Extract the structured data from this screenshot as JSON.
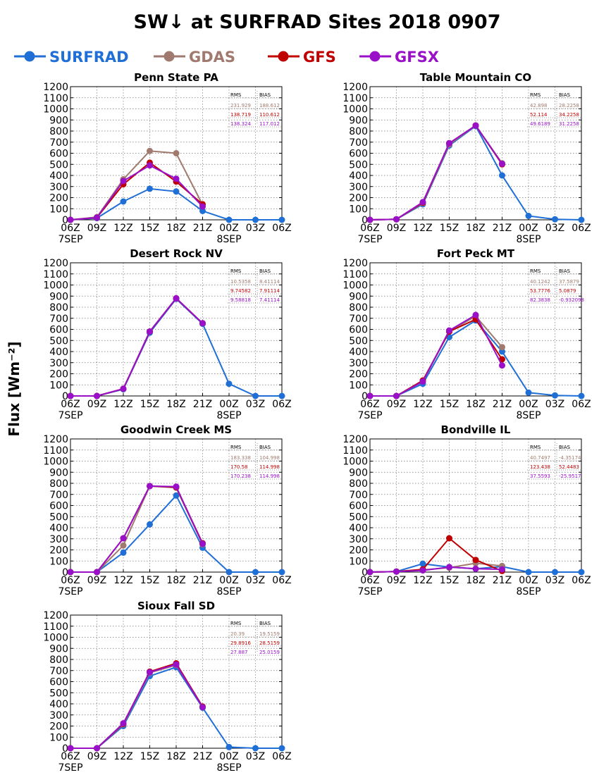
{
  "title": "SW↓ at SURFRAD Sites     2018 0907",
  "ylabel": "Flux [Wm⁻²]",
  "colors": {
    "SURFRAD": "#1f6fd6",
    "GDAS": "#a07a6e",
    "GFS": "#c00000",
    "GFSX": "#9a10c8"
  },
  "legend": [
    "SURFRAD",
    "GDAS",
    "GFS",
    "GFSX"
  ],
  "stats_headers": {
    "rms": "RMS",
    "bias": "BIAS"
  },
  "chart_data": [
    {
      "type": "line",
      "title": "Penn State PA",
      "x": [
        "06Z",
        "09Z",
        "12Z",
        "15Z",
        "18Z",
        "21Z",
        "00Z",
        "03Z",
        "06Z"
      ],
      "date_labels": [
        "7SEP",
        "8SEP"
      ],
      "ylim": [
        0,
        1200
      ],
      "ystep": 100,
      "grid": true,
      "series": [
        {
          "name": "SURFRAD",
          "values": [
            0,
            15,
            165,
            280,
            255,
            80,
            0,
            0,
            0
          ]
        },
        {
          "name": "GDAS",
          "values": [
            0,
            25,
            365,
            620,
            600,
            135,
            null,
            null,
            null
          ]
        },
        {
          "name": "GFS",
          "values": [
            0,
            20,
            320,
            515,
            345,
            140,
            null,
            null,
            null
          ]
        },
        {
          "name": "GFSX",
          "values": [
            0,
            20,
            350,
            490,
            370,
            120,
            null,
            null,
            null
          ]
        }
      ],
      "stats": [
        {
          "series": "GDAS",
          "rms": "231.929",
          "bias": "188.612"
        },
        {
          "series": "GFS",
          "rms": "138.719",
          "bias": "110.612"
        },
        {
          "series": "GFSX",
          "rms": "138.324",
          "bias": "117.012"
        }
      ]
    },
    {
      "type": "line",
      "title": "Table Mountain CO",
      "x": [
        "06Z",
        "09Z",
        "12Z",
        "15Z",
        "18Z",
        "21Z",
        "00Z",
        "03Z",
        "06Z"
      ],
      "date_labels": [
        "7SEP",
        "8SEP"
      ],
      "ylim": [
        0,
        1200
      ],
      "ystep": 100,
      "grid": true,
      "series": [
        {
          "name": "SURFRAD",
          "values": [
            0,
            5,
            140,
            670,
            845,
            400,
            35,
            5,
            0
          ]
        },
        {
          "name": "GDAS",
          "values": [
            0,
            5,
            150,
            680,
            850,
            510,
            null,
            null,
            null
          ]
        },
        {
          "name": "GFS",
          "values": [
            0,
            5,
            155,
            690,
            850,
            500,
            null,
            null,
            null
          ]
        },
        {
          "name": "GFSX",
          "values": [
            0,
            5,
            160,
            690,
            850,
            505,
            null,
            null,
            null
          ]
        }
      ],
      "stats": [
        {
          "series": "GDAS",
          "rms": "42.898",
          "bias": "28.2258"
        },
        {
          "series": "GFS",
          "rms": "52.114",
          "bias": "34.2258"
        },
        {
          "series": "GFSX",
          "rms": "49.6189",
          "bias": "31.2258"
        }
      ]
    },
    {
      "type": "line",
      "title": "Desert Rock NV",
      "x": [
        "06Z",
        "09Z",
        "12Z",
        "15Z",
        "18Z",
        "21Z",
        "00Z",
        "03Z",
        "06Z"
      ],
      "date_labels": [
        "7SEP",
        "8SEP"
      ],
      "ylim": [
        0,
        1200
      ],
      "ystep": 100,
      "grid": true,
      "series": [
        {
          "name": "SURFRAD",
          "values": [
            0,
            0,
            60,
            570,
            875,
            650,
            110,
            0,
            0
          ]
        },
        {
          "name": "GDAS",
          "values": [
            0,
            0,
            65,
            580,
            880,
            655,
            null,
            null,
            null
          ]
        },
        {
          "name": "GFS",
          "values": [
            0,
            0,
            65,
            580,
            880,
            655,
            null,
            null,
            null
          ]
        },
        {
          "name": "GFSX",
          "values": [
            0,
            0,
            65,
            580,
            880,
            655,
            null,
            null,
            null
          ]
        }
      ],
      "stats": [
        {
          "series": "GDAS",
          "rms": "10.5358",
          "bias": "8.41114"
        },
        {
          "series": "GFS",
          "rms": "9.74582",
          "bias": "7.91114"
        },
        {
          "series": "GFSX",
          "rms": "9.58818",
          "bias": "7.41114"
        }
      ]
    },
    {
      "type": "line",
      "title": "Fort Peck MT",
      "x": [
        "06Z",
        "09Z",
        "12Z",
        "15Z",
        "18Z",
        "21Z",
        "00Z",
        "03Z",
        "06Z"
      ],
      "date_labels": [
        "7SEP",
        "8SEP"
      ],
      "ylim": [
        0,
        1200
      ],
      "ystep": 100,
      "grid": true,
      "series": [
        {
          "name": "SURFRAD",
          "values": [
            0,
            0,
            110,
            530,
            680,
            400,
            30,
            5,
            0
          ]
        },
        {
          "name": "GDAS",
          "values": [
            0,
            0,
            130,
            580,
            720,
            440,
            null,
            null,
            null
          ]
        },
        {
          "name": "GFS",
          "values": [
            0,
            0,
            140,
            580,
            690,
            330,
            null,
            null,
            null
          ]
        },
        {
          "name": "GFSX",
          "values": [
            0,
            0,
            130,
            590,
            730,
            275,
            null,
            null,
            null
          ]
        }
      ],
      "stats": [
        {
          "series": "GDAS",
          "rms": "40.1242",
          "bias": "37.5879"
        },
        {
          "series": "GFS",
          "rms": "53.7776",
          "bias": "5.0879"
        },
        {
          "series": "GFSX",
          "rms": "82.3838",
          "bias": "-0.932098"
        }
      ]
    },
    {
      "type": "line",
      "title": "Goodwin Creek MS",
      "x": [
        "06Z",
        "09Z",
        "12Z",
        "15Z",
        "18Z",
        "21Z",
        "00Z",
        "03Z",
        "06Z"
      ],
      "date_labels": [
        "7SEP",
        "8SEP"
      ],
      "ylim": [
        0,
        1200
      ],
      "ystep": 100,
      "grid": true,
      "series": [
        {
          "name": "SURFRAD",
          "values": [
            0,
            0,
            175,
            430,
            690,
            220,
            0,
            0,
            0
          ]
        },
        {
          "name": "GDAS",
          "values": [
            0,
            0,
            240,
            775,
            760,
            250,
            null,
            null,
            null
          ]
        },
        {
          "name": "GFS",
          "values": [
            0,
            0,
            305,
            775,
            765,
            260,
            null,
            null,
            null
          ]
        },
        {
          "name": "GFSX",
          "values": [
            0,
            0,
            305,
            775,
            770,
            255,
            null,
            null,
            null
          ]
        }
      ],
      "stats": [
        {
          "series": "GDAS",
          "rms": "183.338",
          "bias": "104.998"
        },
        {
          "series": "GFS",
          "rms": "170.58",
          "bias": "114.998"
        },
        {
          "series": "GFSX",
          "rms": "170.238",
          "bias": "114.998"
        }
      ]
    },
    {
      "type": "line",
      "title": "Bondville IL",
      "x": [
        "06Z",
        "09Z",
        "12Z",
        "15Z",
        "18Z",
        "21Z",
        "00Z",
        "03Z",
        "06Z"
      ],
      "date_labels": [
        "7SEP",
        "8SEP"
      ],
      "ylim": [
        0,
        1200
      ],
      "ystep": 100,
      "grid": true,
      "series": [
        {
          "name": "SURFRAD",
          "values": [
            0,
            5,
            75,
            45,
            30,
            50,
            0,
            0,
            0
          ]
        },
        {
          "name": "GDAS",
          "values": [
            0,
            5,
            20,
            40,
            80,
            55,
            null,
            null,
            null
          ]
        },
        {
          "name": "GFS",
          "values": [
            0,
            5,
            25,
            305,
            110,
            10,
            null,
            null,
            null
          ]
        },
        {
          "name": "GFSX",
          "values": [
            0,
            5,
            15,
            45,
            30,
            25,
            null,
            null,
            null
          ]
        }
      ],
      "stats": [
        {
          "series": "GDAS",
          "rms": "40.7497",
          "bias": "-4.35174"
        },
        {
          "series": "GFS",
          "rms": "123.438",
          "bias": "52.4483"
        },
        {
          "series": "GFSX",
          "rms": "37.5593",
          "bias": "-25.9517"
        }
      ]
    },
    {
      "type": "line",
      "title": "Sioux Fall SD",
      "x": [
        "06Z",
        "09Z",
        "12Z",
        "15Z",
        "18Z",
        "21Z",
        "00Z",
        "03Z",
        "06Z"
      ],
      "date_labels": [
        "7SEP",
        "8SEP"
      ],
      "ylim": [
        0,
        1200
      ],
      "ystep": 100,
      "grid": true,
      "series": [
        {
          "name": "SURFRAD",
          "values": [
            0,
            0,
            200,
            650,
            730,
            365,
            10,
            0,
            0
          ]
        },
        {
          "name": "GDAS",
          "values": [
            0,
            0,
            215,
            680,
            750,
            375,
            null,
            null,
            null
          ]
        },
        {
          "name": "GFS",
          "values": [
            0,
            0,
            220,
            690,
            765,
            375,
            null,
            null,
            null
          ]
        },
        {
          "name": "GFSX",
          "values": [
            0,
            0,
            225,
            685,
            755,
            370,
            null,
            null,
            null
          ]
        }
      ],
      "stats": [
        {
          "series": "GDAS",
          "rms": "20.39",
          "bias": "19.5159"
        },
        {
          "series": "GFS",
          "rms": "29.8916",
          "bias": "28.5159"
        },
        {
          "series": "GFSX",
          "rms": "27.887",
          "bias": "25.0159"
        }
      ]
    }
  ]
}
